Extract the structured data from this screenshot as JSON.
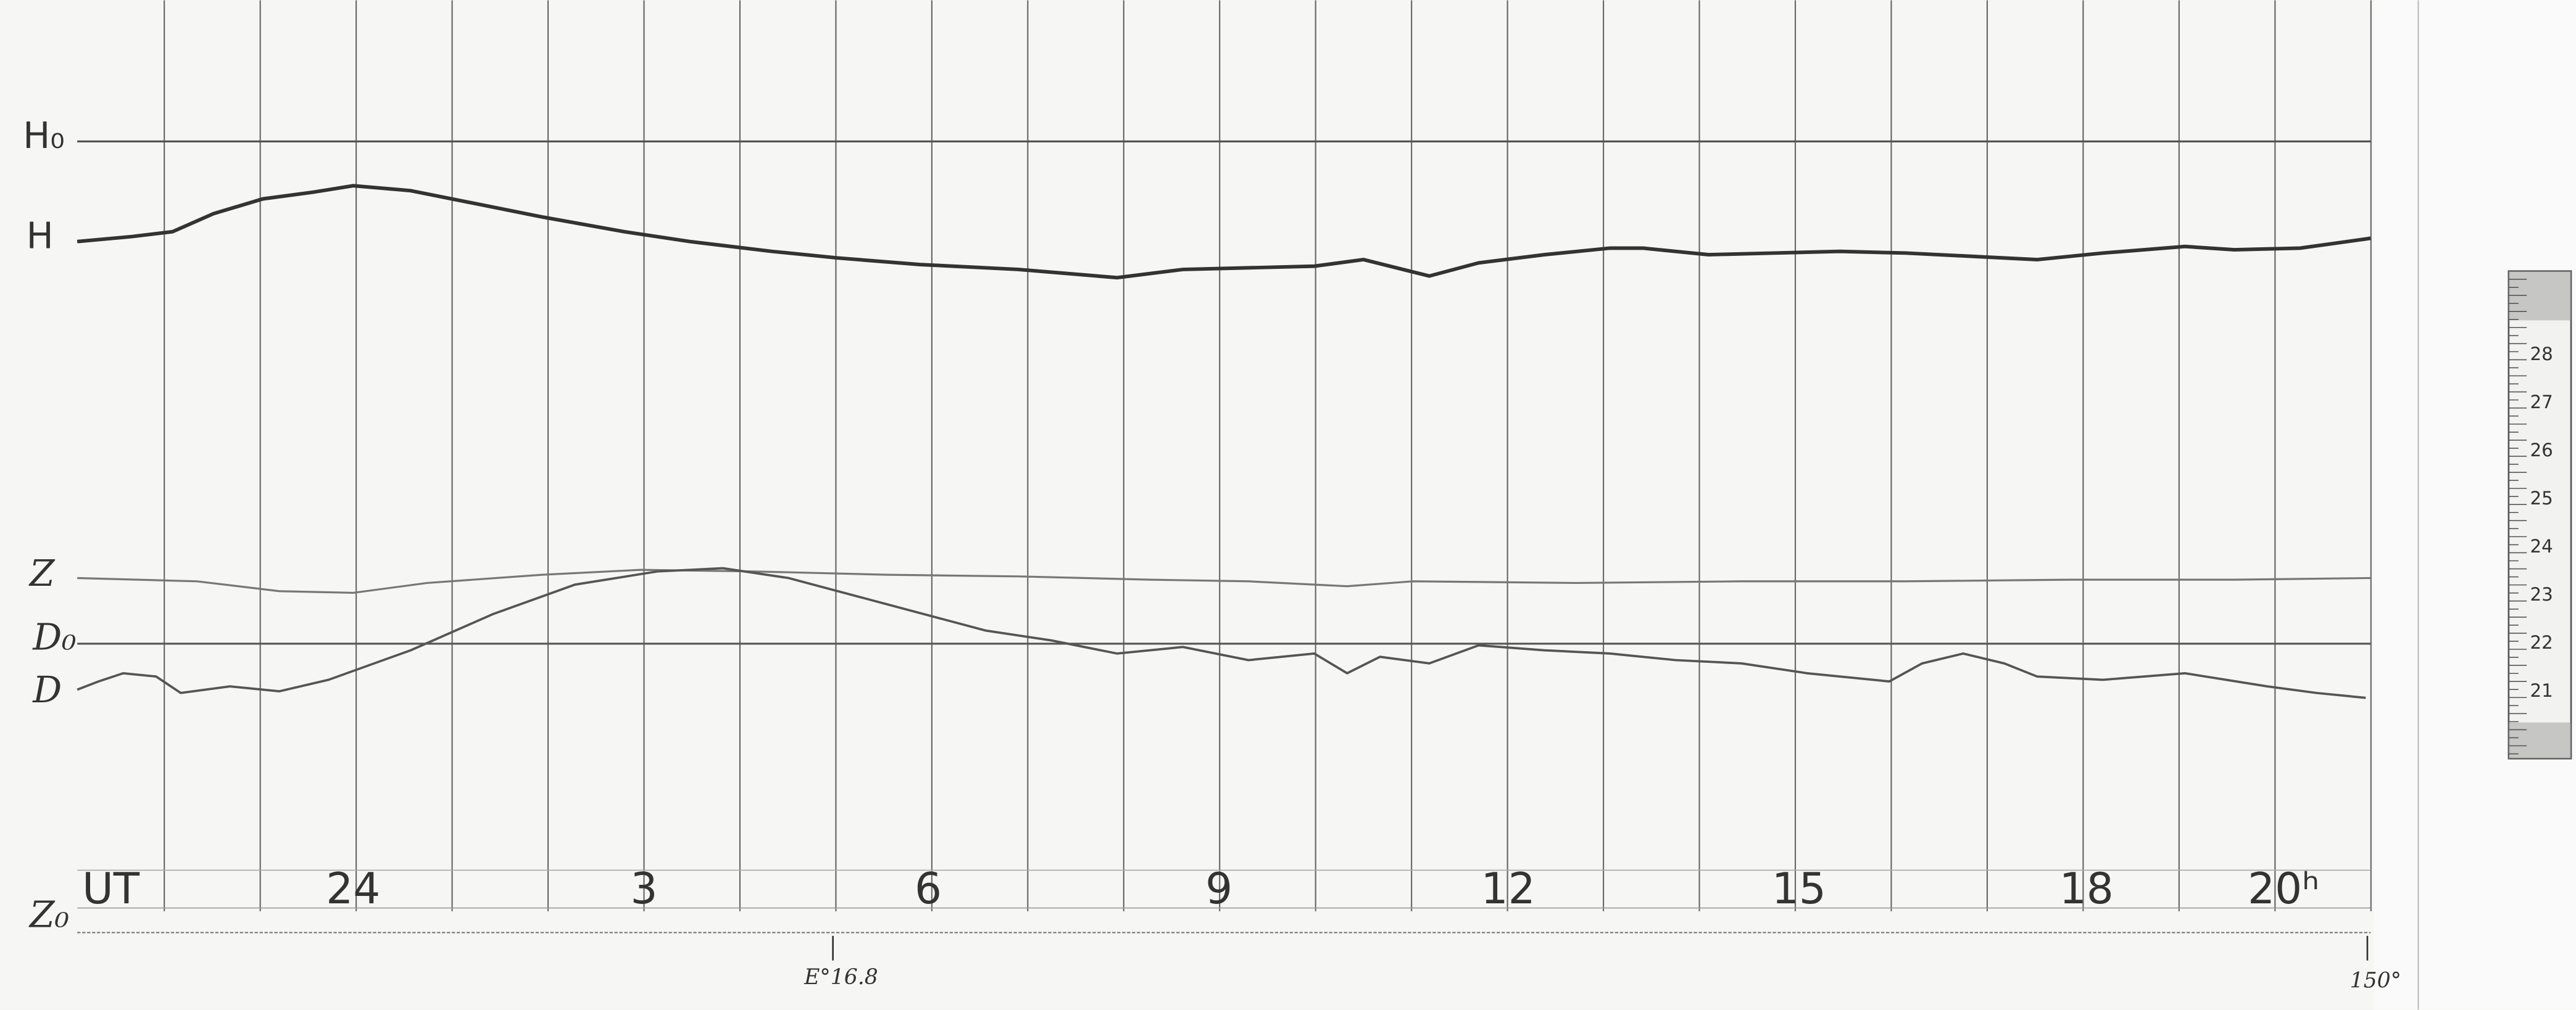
{
  "labels": {
    "h0": "H₀",
    "h": "H",
    "z": "Z",
    "d0": "D₀",
    "d": "D",
    "z0": "Z₀"
  },
  "time_axis": {
    "unit": "UT",
    "hours": [
      "24",
      "3",
      "6",
      "9",
      "12",
      "15",
      "18",
      "20ʰ"
    ]
  },
  "marks": {
    "e_mark": "E°16.8",
    "end_mark": "150°"
  },
  "scale": [
    "28",
    "27",
    "26",
    "25",
    "24",
    "23",
    "22",
    "21"
  ]
}
